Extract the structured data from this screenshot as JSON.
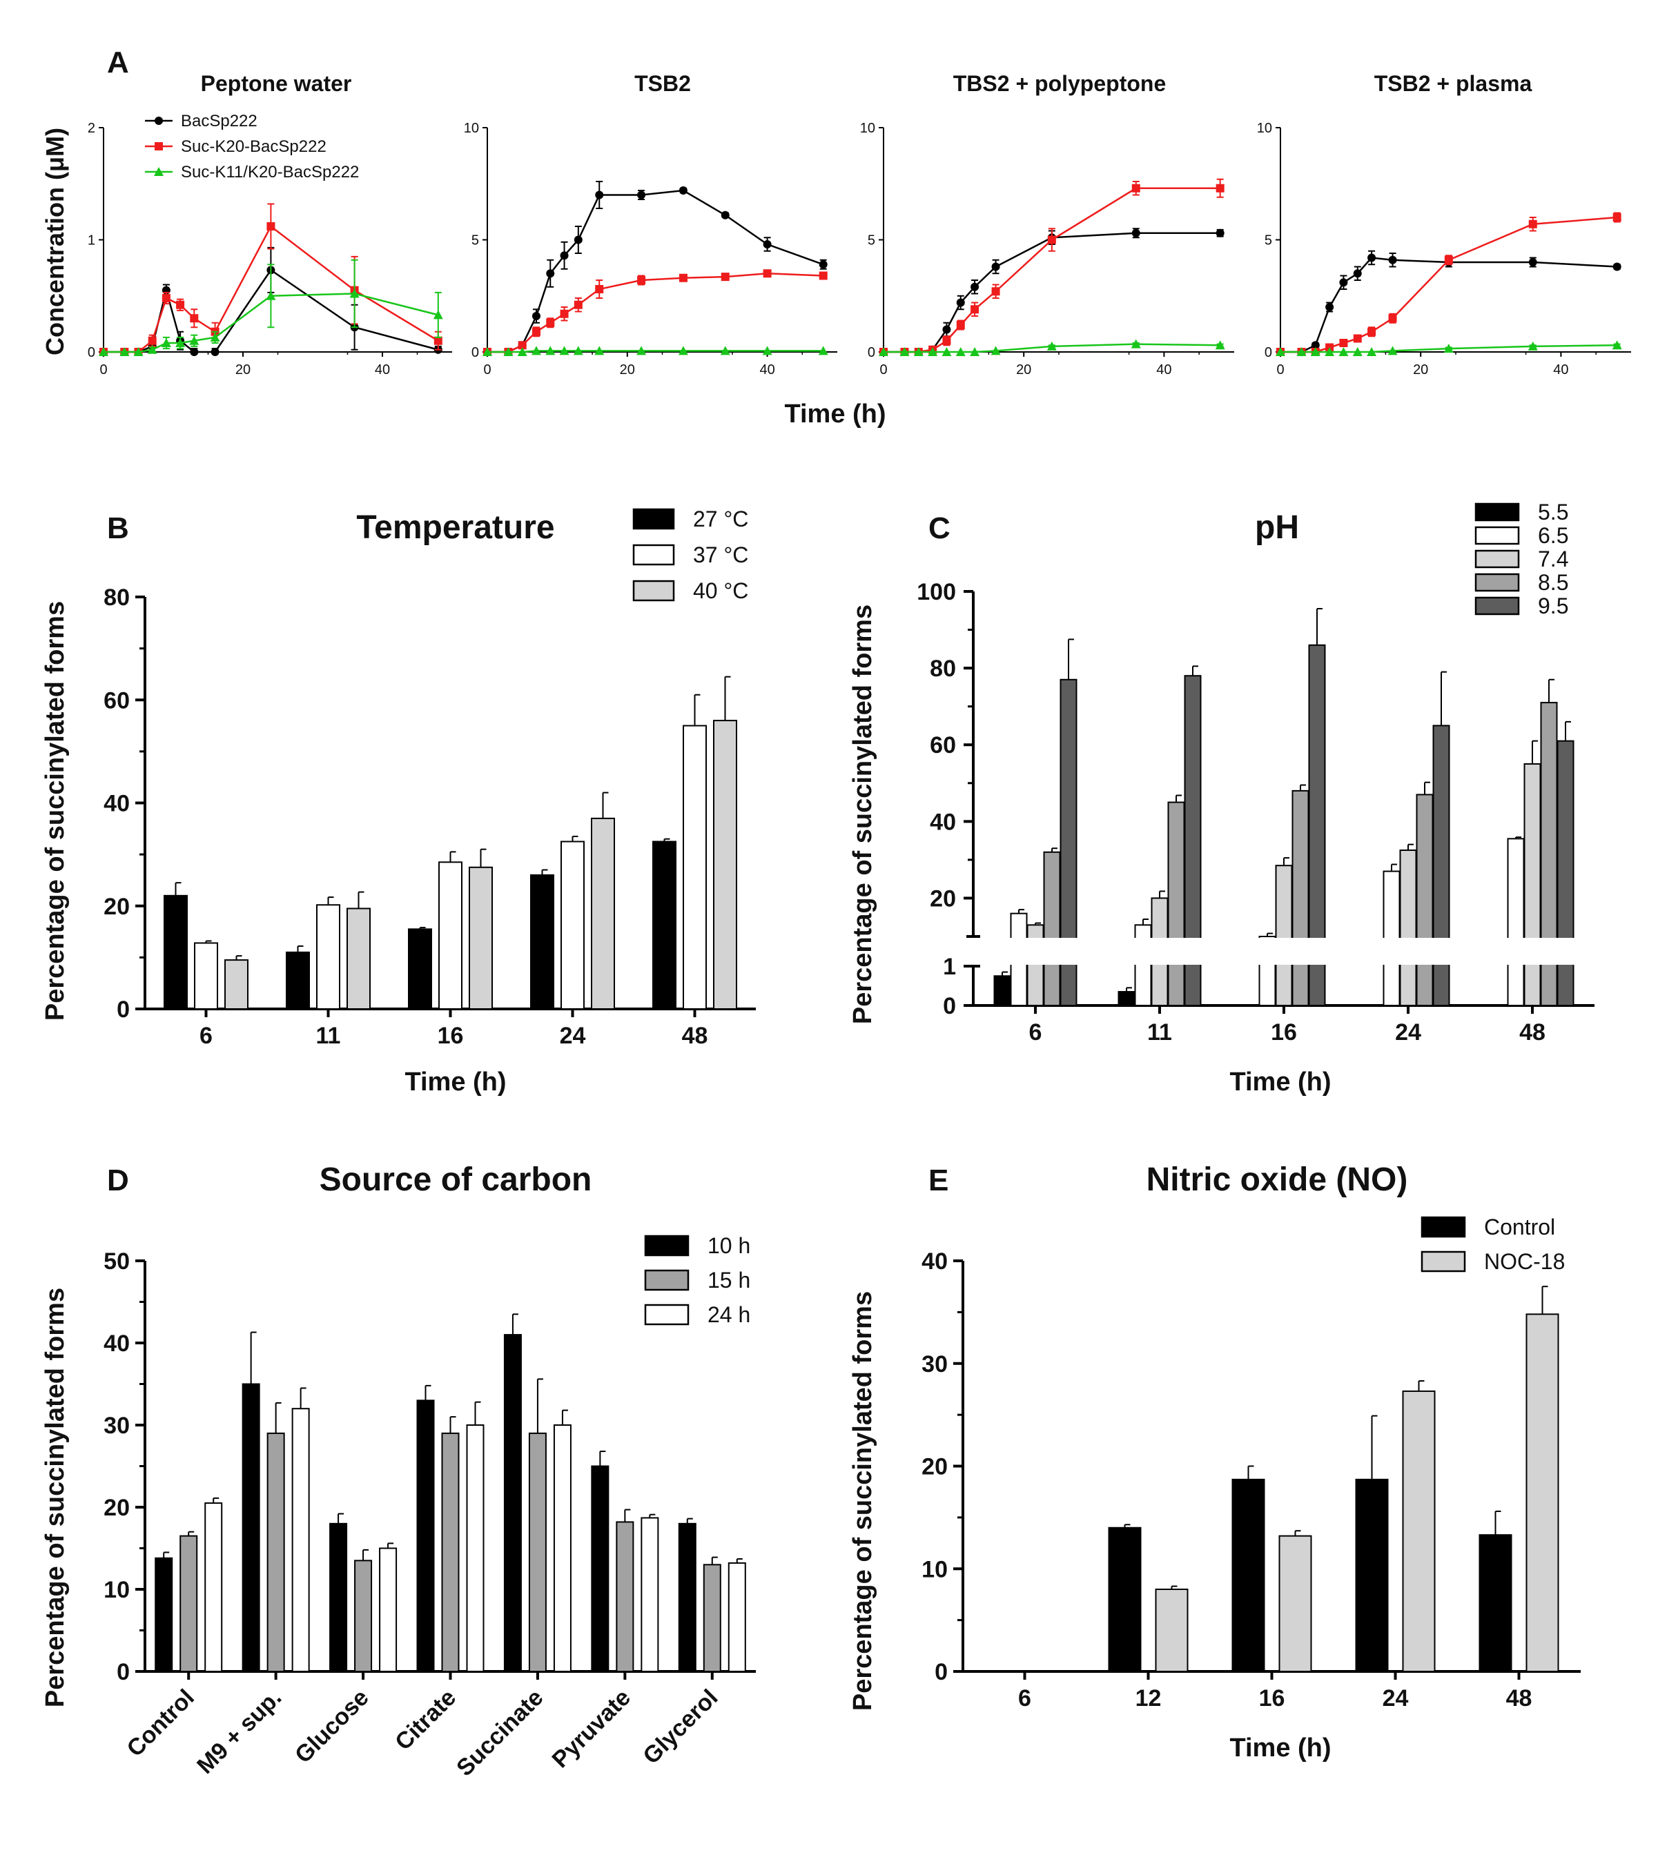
{
  "chart_data": [
    {
      "id": "A",
      "type": "line",
      "panel_label": "A",
      "ylabel": "Concentration (μM)",
      "xlabel": "Time (h)",
      "legend_placement": "top-left of first subplot",
      "legend": [
        {
          "name": "BacSp222",
          "color": "#000000",
          "marker": "circle"
        },
        {
          "name": "Suc-K20-BacSp222",
          "color": "#ee1c1c",
          "marker": "square"
        },
        {
          "name": "Suc-K11/K20-BacSp222",
          "color": "#18c51a",
          "marker": "triangle"
        }
      ],
      "subplots": [
        {
          "title": "Peptone water",
          "xlim": [
            0,
            50
          ],
          "ylim": [
            0,
            2
          ],
          "xticks": [
            "0",
            "20",
            "40"
          ],
          "yticks": [
            "0",
            "1",
            "2"
          ],
          "series": [
            {
              "name": "BacSp222",
              "color": "#000000",
              "marker": "circle",
              "x": [
                0,
                3,
                5,
                7,
                9,
                11,
                13,
                16,
                24,
                36,
                48
              ],
              "y": [
                0,
                0,
                0,
                0.05,
                0.55,
                0.1,
                0.0,
                0.0,
                0.73,
                0.22,
                0.02
              ],
              "err": [
                0,
                0,
                0,
                0.05,
                0.05,
                0.08,
                0.03,
                0.03,
                0.2,
                0.2,
                0.03
              ]
            },
            {
              "name": "Suc-K20-BacSp222",
              "color": "#ee1c1c",
              "marker": "square",
              "x": [
                0,
                3,
                5,
                7,
                9,
                11,
                13,
                16,
                24,
                36,
                48
              ],
              "y": [
                0,
                0,
                0,
                0.1,
                0.48,
                0.42,
                0.3,
                0.18,
                1.12,
                0.55,
                0.1
              ],
              "err": [
                0,
                0,
                0,
                0.05,
                0.05,
                0.05,
                0.08,
                0.08,
                0.2,
                0.3,
                0.08
              ]
            },
            {
              "name": "Suc-K11/K20-BacSp222",
              "color": "#18c51a",
              "marker": "triangle",
              "x": [
                0,
                3,
                5,
                7,
                9,
                11,
                13,
                16,
                24,
                36,
                48
              ],
              "y": [
                0,
                0,
                0,
                0.02,
                0.08,
                0.08,
                0.1,
                0.13,
                0.5,
                0.52,
                0.33
              ],
              "err": [
                0,
                0,
                0,
                0.02,
                0.05,
                0.05,
                0.05,
                0.05,
                0.28,
                0.3,
                0.2
              ]
            }
          ]
        },
        {
          "title": "TSB2",
          "xlim": [
            0,
            50
          ],
          "ylim": [
            0,
            10
          ],
          "xticks": [
            "0",
            "20",
            "40"
          ],
          "yticks": [
            "0",
            "5",
            "10"
          ],
          "series": [
            {
              "name": "BacSp222",
              "color": "#000000",
              "marker": "circle",
              "x": [
                0,
                3,
                5,
                7,
                9,
                11,
                13,
                16,
                22,
                28,
                34,
                40,
                48
              ],
              "y": [
                0,
                0,
                0.3,
                1.6,
                3.5,
                4.3,
                5.0,
                7.0,
                7.0,
                7.2,
                6.1,
                4.8,
                3.9
              ],
              "err": [
                0,
                0,
                0.1,
                0.3,
                0.6,
                0.6,
                0.6,
                0.6,
                0.2,
                0.1,
                0.1,
                0.3,
                0.2
              ]
            },
            {
              "name": "Suc-K20-BacSp222",
              "color": "#ee1c1c",
              "marker": "square",
              "x": [
                0,
                3,
                5,
                7,
                9,
                11,
                13,
                16,
                22,
                28,
                34,
                40,
                48
              ],
              "y": [
                0,
                0,
                0.3,
                0.9,
                1.3,
                1.7,
                2.1,
                2.8,
                3.2,
                3.3,
                3.35,
                3.5,
                3.4
              ],
              "err": [
                0,
                0,
                0.1,
                0.2,
                0.2,
                0.3,
                0.3,
                0.4,
                0.2,
                0.1,
                0.1,
                0.1,
                0.1
              ]
            },
            {
              "name": "Suc-K11/K20-BacSp222",
              "color": "#18c51a",
              "marker": "triangle",
              "x": [
                0,
                3,
                5,
                7,
                9,
                11,
                13,
                16,
                22,
                28,
                34,
                40,
                48
              ],
              "y": [
                0,
                0,
                0,
                0.05,
                0.05,
                0.05,
                0.05,
                0.05,
                0.05,
                0.05,
                0.05,
                0.05,
                0.05
              ],
              "err": [
                0,
                0,
                0,
                0,
                0,
                0,
                0,
                0,
                0,
                0,
                0,
                0,
                0
              ]
            }
          ]
        },
        {
          "title": "TBS2 + polypeptone",
          "xlim": [
            0,
            50
          ],
          "ylim": [
            0,
            10
          ],
          "xticks": [
            "0",
            "20",
            "40"
          ],
          "yticks": [
            "0",
            "5",
            "10"
          ],
          "series": [
            {
              "name": "BacSp222",
              "color": "#000000",
              "marker": "circle",
              "x": [
                0,
                3,
                5,
                7,
                9,
                11,
                13,
                16,
                24,
                36,
                48
              ],
              "y": [
                0,
                0,
                0,
                0.1,
                1.0,
                2.2,
                2.9,
                3.8,
                5.1,
                5.3,
                5.3
              ],
              "err": [
                0,
                0,
                0,
                0.1,
                0.3,
                0.3,
                0.3,
                0.3,
                0.3,
                0.2,
                0.15
              ]
            },
            {
              "name": "Suc-K20-BacSp222",
              "color": "#ee1c1c",
              "marker": "square",
              "x": [
                0,
                3,
                5,
                7,
                9,
                11,
                13,
                16,
                24,
                36,
                48
              ],
              "y": [
                0,
                0,
                0,
                0.1,
                0.5,
                1.2,
                1.9,
                2.7,
                5.0,
                7.3,
                7.3
              ],
              "err": [
                0,
                0,
                0,
                0.05,
                0.2,
                0.2,
                0.3,
                0.3,
                0.5,
                0.3,
                0.4
              ]
            },
            {
              "name": "Suc-K11/K20-BacSp222",
              "color": "#18c51a",
              "marker": "triangle",
              "x": [
                0,
                3,
                5,
                7,
                9,
                11,
                13,
                16,
                24,
                36,
                48
              ],
              "y": [
                0,
                0,
                0,
                0,
                0,
                0,
                0,
                0.05,
                0.25,
                0.35,
                0.3
              ],
              "err": [
                0,
                0,
                0,
                0,
                0,
                0,
                0,
                0,
                0.05,
                0.05,
                0.05
              ]
            }
          ]
        },
        {
          "title": "TSB2 + plasma",
          "xlim": [
            0,
            50
          ],
          "ylim": [
            0,
            10
          ],
          "xticks": [
            "0",
            "20",
            "40"
          ],
          "yticks": [
            "0",
            "5",
            "10"
          ],
          "series": [
            {
              "name": "BacSp222",
              "color": "#000000",
              "marker": "circle",
              "x": [
                0,
                3,
                5,
                7,
                9,
                11,
                13,
                16,
                24,
                36,
                48
              ],
              "y": [
                0,
                0,
                0.3,
                2.0,
                3.1,
                3.5,
                4.2,
                4.1,
                4.0,
                4.0,
                3.8
              ],
              "err": [
                0,
                0,
                0.1,
                0.2,
                0.3,
                0.3,
                0.3,
                0.3,
                0.2,
                0.2,
                0.1
              ]
            },
            {
              "name": "Suc-K20-BacSp222",
              "color": "#ee1c1c",
              "marker": "square",
              "x": [
                0,
                3,
                5,
                7,
                9,
                11,
                13,
                16,
                24,
                36,
                48
              ],
              "y": [
                0,
                0,
                0,
                0.2,
                0.4,
                0.6,
                0.9,
                1.5,
                4.1,
                5.7,
                6.0
              ],
              "err": [
                0,
                0,
                0,
                0.05,
                0.1,
                0.1,
                0.2,
                0.2,
                0.2,
                0.3,
                0.2
              ]
            },
            {
              "name": "Suc-K11/K20-BacSp222",
              "color": "#18c51a",
              "marker": "triangle",
              "x": [
                0,
                3,
                5,
                7,
                9,
                11,
                13,
                16,
                24,
                36,
                48
              ],
              "y": [
                0,
                0,
                0,
                0,
                0,
                0,
                0,
                0.05,
                0.15,
                0.25,
                0.3
              ],
              "err": [
                0,
                0,
                0,
                0,
                0,
                0,
                0,
                0,
                0.05,
                0.05,
                0.05
              ]
            }
          ]
        }
      ]
    },
    {
      "id": "B",
      "type": "bar",
      "panel_label": "B",
      "title": "Temperature",
      "ylabel": "Percentage of succinylated forms",
      "xlabel": "Time (h)",
      "ylim": [
        0,
        80
      ],
      "yticks": [
        "0",
        "20",
        "40",
        "60",
        "80"
      ],
      "legend_placement": "top-right",
      "categories": [
        "6",
        "11",
        "16",
        "24",
        "48"
      ],
      "series": [
        {
          "name": "27 °C",
          "color": "#000000",
          "values": [
            22,
            11,
            15.5,
            26,
            32.5
          ],
          "err": [
            2.5,
            1.2,
            0.3,
            1.0,
            0.5
          ]
        },
        {
          "name": "37 °C",
          "color": "#ffffff",
          "values": [
            12.8,
            20.2,
            28.5,
            32.5,
            55
          ],
          "err": [
            0.4,
            1.5,
            2.0,
            1.0,
            6.0
          ]
        },
        {
          "name": "40 °C",
          "color": "#d3d3d3",
          "values": [
            9.5,
            19.5,
            27.5,
            37,
            56
          ],
          "err": [
            0.8,
            3.2,
            3.5,
            5.0,
            8.5
          ]
        }
      ]
    },
    {
      "id": "C",
      "type": "bar",
      "panel_label": "C",
      "title": "pH",
      "ylabel": "Percentage of succinylated forms",
      "xlabel": "Time (h)",
      "ylim": [
        0,
        100
      ],
      "axis_break": [
        1,
        10
      ],
      "yticks": [
        "0",
        "1",
        "20",
        "40",
        "60",
        "80",
        "100"
      ],
      "legend_placement": "top-right",
      "categories": [
        "6",
        "11",
        "16",
        "24",
        "48"
      ],
      "series": [
        {
          "name": "5.5",
          "color": "#000000",
          "values": [
            0.75,
            0.35,
            0,
            0,
            0
          ],
          "err": [
            0.1,
            0.1,
            0,
            0,
            0
          ]
        },
        {
          "name": "6.5",
          "color": "#ffffff",
          "values": [
            16,
            13,
            10,
            27,
            35.5
          ],
          "err": [
            1.0,
            1.5,
            0.8,
            1.8,
            0.4
          ]
        },
        {
          "name": "7.4",
          "color": "#d3d3d3",
          "values": [
            13,
            20,
            28.5,
            32.5,
            55
          ],
          "err": [
            0.5,
            1.8,
            2.0,
            1.5,
            6.0
          ]
        },
        {
          "name": "8.5",
          "color": "#a2a2a2",
          "values": [
            32,
            45,
            48,
            47,
            71
          ],
          "err": [
            1.0,
            1.8,
            1.5,
            3.2,
            6.0
          ]
        },
        {
          "name": "9.5",
          "color": "#5d5d5d",
          "values": [
            77,
            78,
            86,
            65,
            61
          ],
          "err": [
            10.5,
            2.5,
            9.5,
            14.0,
            5.0
          ]
        }
      ]
    },
    {
      "id": "D",
      "type": "bar",
      "panel_label": "D",
      "title": "Source of carbon",
      "ylabel": "Percentage of succinylated forms",
      "xlabel": "",
      "ylim": [
        0,
        50
      ],
      "yticks": [
        "0",
        "10",
        "20",
        "30",
        "40",
        "50"
      ],
      "legend_placement": "top-right",
      "categories": [
        "Control",
        "M9 + sup.",
        "Glucose",
        "Citrate",
        "Succinate",
        "Pyruvate",
        "Glycerol"
      ],
      "series": [
        {
          "name": "10 h",
          "color": "#000000",
          "values": [
            13.8,
            35,
            18,
            33,
            41,
            25,
            18
          ],
          "err": [
            0.7,
            6.3,
            1.2,
            1.8,
            2.5,
            1.8,
            0.6
          ]
        },
        {
          "name": "15 h",
          "color": "#a2a2a2",
          "values": [
            16.5,
            29,
            13.5,
            29,
            29,
            18.2,
            13
          ],
          "err": [
            0.5,
            3.7,
            1.3,
            2.0,
            6.6,
            1.5,
            0.9
          ]
        },
        {
          "name": "24 h",
          "color": "#ffffff",
          "values": [
            20.5,
            32,
            15,
            30,
            30,
            18.7,
            13.2
          ],
          "err": [
            0.6,
            2.5,
            0.6,
            2.8,
            1.8,
            0.4,
            0.5
          ]
        }
      ]
    },
    {
      "id": "E",
      "type": "bar",
      "panel_label": "E",
      "title": "Nitric oxide (NO)",
      "ylabel": "Percentage of succinylated forms",
      "xlabel": "Time (h)",
      "ylim": [
        0,
        40
      ],
      "yticks": [
        "0",
        "10",
        "20",
        "30",
        "40"
      ],
      "legend_placement": "top-right",
      "categories": [
        "6",
        "12",
        "16",
        "24",
        "48"
      ],
      "series": [
        {
          "name": "Control",
          "color": "#000000",
          "values": [
            0,
            14,
            18.7,
            18.7,
            13.3
          ],
          "err": [
            0,
            0.3,
            1.3,
            6.2,
            2.3
          ]
        },
        {
          "name": "NOC-18",
          "color": "#d3d3d3",
          "values": [
            0,
            8,
            13.2,
            27.3,
            34.8
          ],
          "err": [
            0,
            0.3,
            0.5,
            1.0,
            2.7
          ]
        }
      ]
    }
  ]
}
